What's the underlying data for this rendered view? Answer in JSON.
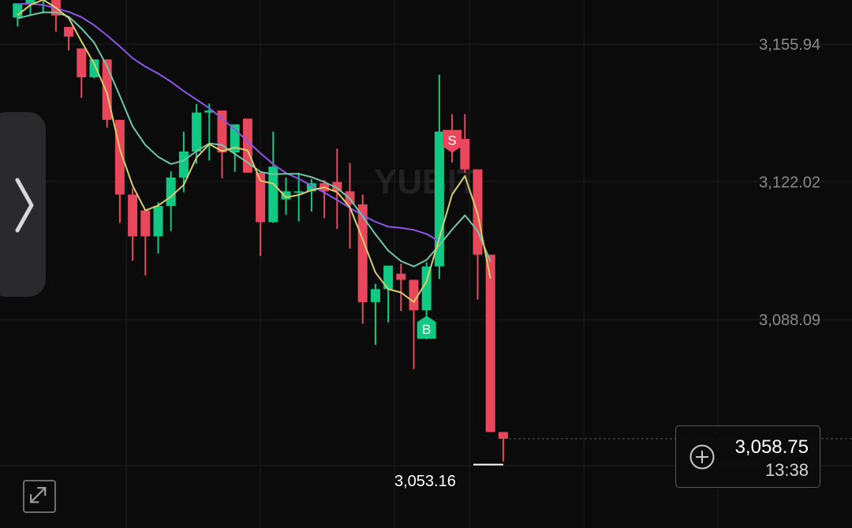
{
  "chart_data": {
    "type": "candlestick",
    "watermark": "YUBIT",
    "y_ticks": [
      3155.94,
      3122.02,
      3088.09
    ],
    "y_tick_labels": [
      "3,155.94",
      "3,122.02",
      "3,088.09"
    ],
    "ylim": [
      3042.3,
      3167.4
    ],
    "grid": true,
    "candles": [
      {
        "o": 3162.5,
        "h": 3165.8,
        "l": 3160.3,
        "c": 3166.0
      },
      {
        "o": 3166.0,
        "h": 3168.0,
        "l": 3163.2,
        "c": 3168.0
      },
      {
        "o": 3168.0,
        "h": 3168.0,
        "l": 3163.6,
        "c": 3168.0
      },
      {
        "o": 3168.0,
        "h": 3168.0,
        "l": 3159.0,
        "c": 3163.0
      },
      {
        "o": 3160.2,
        "h": 3160.2,
        "l": 3154.4,
        "c": 3157.8
      },
      {
        "o": 3154.9,
        "h": 3154.9,
        "l": 3142.7,
        "c": 3147.8
      },
      {
        "o": 3147.8,
        "h": 3152.2,
        "l": 3147.5,
        "c": 3152.2
      },
      {
        "o": 3152.2,
        "h": 3152.2,
        "l": 3135.4,
        "c": 3137.3
      },
      {
        "o": 3137.3,
        "h": 3137.3,
        "l": 3111.9,
        "c": 3118.9
      },
      {
        "o": 3118.9,
        "h": 3120.4,
        "l": 3102.6,
        "c": 3108.6
      },
      {
        "o": 3115.0,
        "h": 3115.0,
        "l": 3099.0,
        "c": 3108.6
      },
      {
        "o": 3108.6,
        "h": 3117.0,
        "l": 3104.4,
        "c": 3116.1
      },
      {
        "o": 3116.1,
        "h": 3124.6,
        "l": 3109.9,
        "c": 3123.1
      },
      {
        "o": 3123.1,
        "h": 3134.4,
        "l": 3119.5,
        "c": 3129.5
      },
      {
        "o": 3129.5,
        "h": 3141.2,
        "l": 3126.5,
        "c": 3139.1
      },
      {
        "o": 3139.1,
        "h": 3141.3,
        "l": 3127.3,
        "c": 3139.6
      },
      {
        "o": 3139.6,
        "h": 3139.6,
        "l": 3122.9,
        "c": 3129.3
      },
      {
        "o": 3129.3,
        "h": 3136.2,
        "l": 3124.5,
        "c": 3136.2
      },
      {
        "o": 3137.6,
        "h": 3137.6,
        "l": 3124.3,
        "c": 3124.3
      },
      {
        "o": 3124.3,
        "h": 3124.3,
        "l": 3103.8,
        "c": 3112.1
      },
      {
        "o": 3112.1,
        "h": 3134.4,
        "l": 3111.9,
        "c": 3125.8
      },
      {
        "o": 3117.7,
        "h": 3123.1,
        "l": 3113.9,
        "c": 3119.7
      },
      {
        "o": 3119.7,
        "h": 3124.3,
        "l": 3112.3,
        "c": 3119.7
      },
      {
        "o": 3119.7,
        "h": 3122.7,
        "l": 3114.7,
        "c": 3121.7
      },
      {
        "o": 3121.7,
        "h": 3122.5,
        "l": 3113.1,
        "c": 3119.7
      },
      {
        "o": 3122.0,
        "h": 3130.2,
        "l": 3110.4,
        "c": 3119.7
      },
      {
        "o": 3119.7,
        "h": 3126.7,
        "l": 3105.6,
        "c": 3116.5
      },
      {
        "o": 3116.5,
        "h": 3118.9,
        "l": 3087.1,
        "c": 3092.4
      },
      {
        "o": 3092.4,
        "h": 3096.9,
        "l": 3081.9,
        "c": 3095.6
      },
      {
        "o": 3095.6,
        "h": 3101.4,
        "l": 3087.4,
        "c": 3101.4
      },
      {
        "o": 3099.4,
        "h": 3101.9,
        "l": 3090.2,
        "c": 3097.9
      },
      {
        "o": 3097.9,
        "h": 3097.9,
        "l": 3075.9,
        "c": 3090.4
      },
      {
        "o": 3090.4,
        "h": 3102.2,
        "l": 3083.2,
        "c": 3101.2
      },
      {
        "o": 3101.2,
        "h": 3148.4,
        "l": 3098.1,
        "c": 3134.4
      },
      {
        "o": 3134.4,
        "h": 3138.7,
        "l": 3126.8,
        "c": 3132.6
      },
      {
        "o": 3132.6,
        "h": 3138.7,
        "l": 3124.3,
        "c": 3125.1
      },
      {
        "o": 3125.1,
        "h": 3125.1,
        "l": 3093.0,
        "c": 3104.1
      },
      {
        "o": 3104.1,
        "h": 3104.1,
        "l": 3060.4,
        "c": 3060.4
      },
      {
        "o": 3060.4,
        "h": 3060.4,
        "l": 3053.16,
        "c": 3058.75
      }
    ],
    "ma_short": [
      3163.1,
      3165.6,
      3166.9,
      3164.9,
      3162.4,
      3156.6,
      3151.1,
      3143.9,
      3130.1,
      3121.1,
      3115.0,
      3116.2,
      3118.4,
      3121.3,
      3128.0,
      3131.3,
      3129.6,
      3130.5,
      3129.8,
      3122.3,
      3121.6,
      3118.2,
      3118.8,
      3120.0,
      3120.7,
      3119.5,
      3115.8,
      3107.9,
      3099.7,
      3095.6,
      3094.8,
      3092.4,
      3097.5,
      3108.2,
      3118.9,
      3123.5,
      3114.1,
      3098.2
    ],
    "ma_mid": [
      3162.3,
      3163.1,
      3163.8,
      3163.8,
      3162.7,
      3159.8,
      3156.3,
      3150.5,
      3143.2,
      3135.7,
      3131.1,
      3128.2,
      3126.4,
      3127.3,
      3129.6,
      3131.5,
      3131.1,
      3128.9,
      3126.8,
      3124.5,
      3123.9,
      3124.0,
      3124.0,
      3123.2,
      3122.0,
      3120.5,
      3117.9,
      3113.5,
      3109.1,
      3105.1,
      3102.5,
      3101.2,
      3102.8,
      3106.4,
      3110.3,
      3113.8,
      3109.9,
      3102.4
    ],
    "ma_long": [
      3165.8,
      3165.9,
      3165.6,
      3164.8,
      3163.9,
      3162.6,
      3160.6,
      3158.1,
      3155.4,
      3152.5,
      3150.4,
      3148.7,
      3146.7,
      3144.4,
      3142.3,
      3140.2,
      3137.6,
      3134.9,
      3132.0,
      3129.1,
      3126.4,
      3124.2,
      3122.8,
      3121.1,
      3119.4,
      3117.6,
      3115.6,
      3113.8,
      3112.2,
      3111.0,
      3110.7,
      3110.2,
      3109.2,
      3107.4
    ],
    "markers": [
      {
        "candle": 32,
        "label": "B",
        "side": "buy"
      },
      {
        "candle": 34,
        "label": "S",
        "side": "sell"
      }
    ],
    "low_label": "3,053.16",
    "last_price": "3,058.75",
    "countdown": "13:38",
    "colors": {
      "up": "#10c983",
      "down": "#e9485c",
      "ma_short": "#d9cd6a",
      "ma_mid": "#6fc7a9",
      "ma_long": "#8d56e8",
      "grid": "#1d1d20",
      "background": "#0b0b0c"
    }
  }
}
